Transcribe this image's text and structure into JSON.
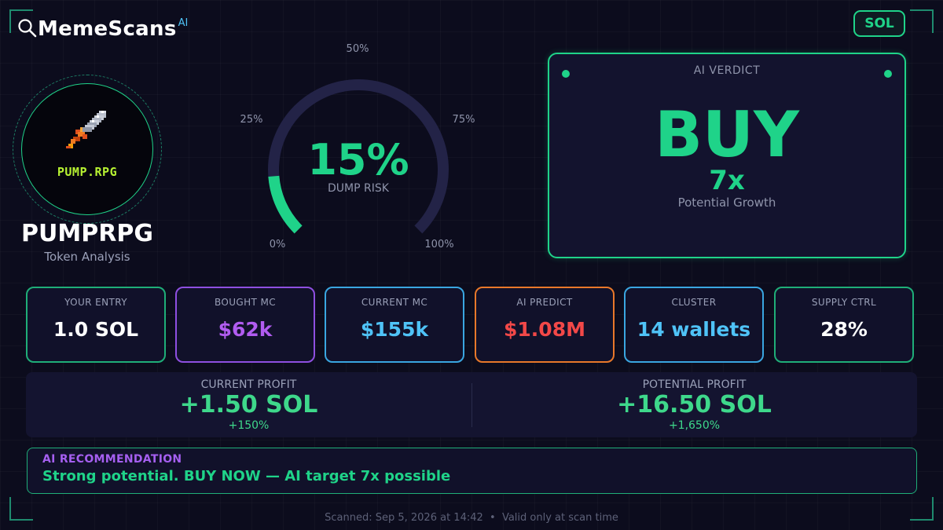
{
  "brand": {
    "name": "MemeScans",
    "superscript": "AI",
    "icon": "magnifier-icon"
  },
  "chain": "SOL",
  "token": {
    "logo_text": "PUMP.RPG",
    "logo_icon": "pixel-sword-icon",
    "name": "PUMPRPG",
    "subtitle": "Token Analysis"
  },
  "gauge": {
    "value_text": "15%",
    "value": 15,
    "caption": "DUMP RISK",
    "ticks": {
      "t0": "0%",
      "t25": "25%",
      "t50": "50%",
      "t75": "75%",
      "t100": "100%"
    }
  },
  "verdict": {
    "label": "AI VERDICT",
    "word": "BUY",
    "multiplier": "7x",
    "subtitle": "Potential Growth"
  },
  "stats": [
    {
      "label": "YOUR ENTRY",
      "value": "1.0 SOL",
      "color": "#ffffff",
      "border": "#1fae78"
    },
    {
      "label": "BOUGHT MC",
      "value": "$62k",
      "color": "#b15cf0",
      "border": "#8e4fe0"
    },
    {
      "label": "CURRENT MC",
      "value": "$155k",
      "color": "#4fc3f7",
      "border": "#3aa6e0"
    },
    {
      "label": "AI PREDICT",
      "value": "$1.08M",
      "color": "#f24848",
      "border": "#e8782a"
    },
    {
      "label": "CLUSTER",
      "value": "14 wallets",
      "color": "#4fc3f7",
      "border": "#3aa6e0"
    },
    {
      "label": "SUPPLY CTRL",
      "value": "28%",
      "color": "#ffffff",
      "border": "#1fae78"
    }
  ],
  "profit": {
    "current": {
      "label": "CURRENT PROFIT",
      "value": "+1.50 SOL",
      "pct": "+150%"
    },
    "potential": {
      "label": "POTENTIAL PROFIT",
      "value": "+16.50 SOL",
      "pct": "+1,650%"
    }
  },
  "recommendation": {
    "title": "AI RECOMMENDATION",
    "text": "Strong potential. BUY NOW — AI target 7x possible"
  },
  "footer": {
    "text": "Scanned: Sep 5, 2026 at 14:42  •  Valid only at scan time"
  }
}
